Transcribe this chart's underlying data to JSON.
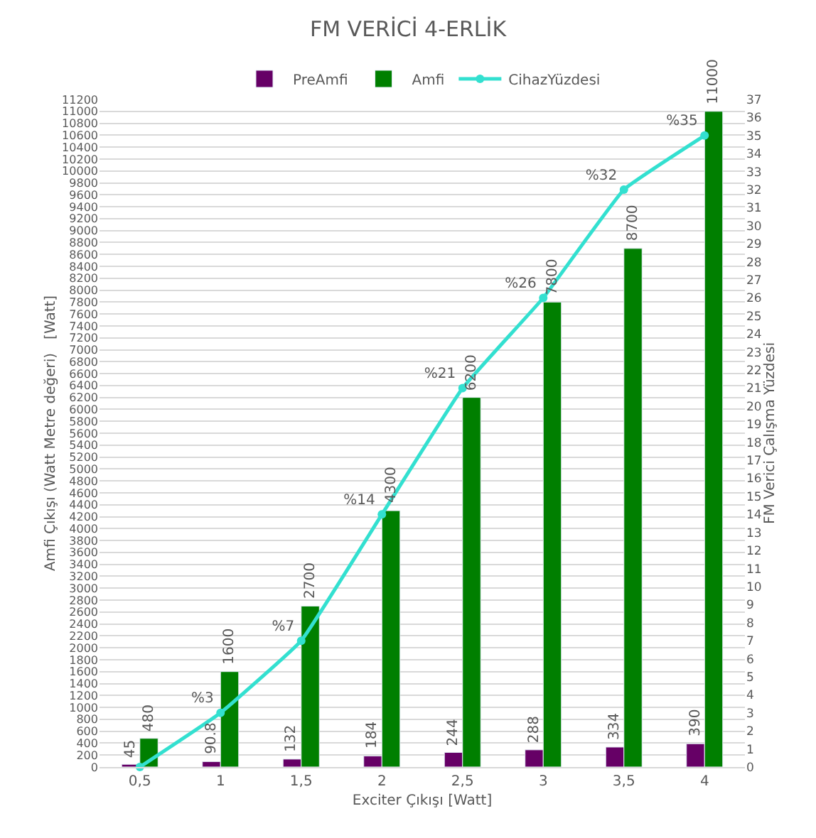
{
  "chart_data": {
    "type": "bar",
    "title": "FM VERİCİ 4-ERLİK",
    "xlabel": "Exciter Çıkışı [Watt]",
    "ylabel": "Amfi Çıkışı (Watt Metre değeri)   [Watt]",
    "y2label": "FM Verici Çalışma Yüzdesi",
    "categories": [
      "0,5",
      "1",
      "1,5",
      "2",
      "2,5",
      "3",
      "3,5",
      "4"
    ],
    "series": [
      {
        "name": "PreAmfi",
        "color": "#660066",
        "values": [
          45,
          90.8,
          132,
          184,
          244,
          288,
          334,
          390
        ]
      },
      {
        "name": "Amfi",
        "color": "#007f00",
        "values": [
          480,
          1600,
          2700,
          4300,
          6200,
          7800,
          8700,
          11000
        ]
      },
      {
        "name": "CihazYüzdesi",
        "type": "line",
        "axis": "y2",
        "color": "#33e0d0",
        "marker": "circle",
        "values": [
          0,
          3,
          7,
          14,
          21,
          26,
          32,
          35
        ],
        "value_labels": [
          null,
          "%3",
          "%7",
          "%14",
          "%21",
          "%26",
          "%32",
          "%35"
        ]
      }
    ],
    "data_labels": true,
    "ylim": [
      0,
      11200
    ],
    "yticks": [
      0,
      200,
      400,
      600,
      800,
      1000,
      1200,
      1400,
      1600,
      1800,
      2000,
      2200,
      2400,
      2600,
      2800,
      3000,
      3200,
      3400,
      3600,
      3800,
      4000,
      4200,
      4400,
      4600,
      4800,
      5000,
      5200,
      5400,
      5600,
      5800,
      6000,
      6200,
      6400,
      6600,
      6800,
      7000,
      7200,
      7400,
      7600,
      7800,
      8000,
      8200,
      8400,
      8600,
      8800,
      9000,
      9200,
      9400,
      9600,
      9800,
      10000,
      10200,
      10400,
      10600,
      10800,
      11000,
      11200
    ],
    "y2lim": [
      0,
      37
    ],
    "y2ticks": [
      0,
      1,
      2,
      3,
      4,
      5,
      6,
      7,
      8,
      9,
      10,
      11,
      12,
      13,
      14,
      15,
      16,
      17,
      18,
      19,
      20,
      21,
      22,
      23,
      24,
      25,
      26,
      27,
      28,
      29,
      30,
      31,
      32,
      33,
      34,
      35,
      36,
      37
    ],
    "grid": "y",
    "legend": "top"
  }
}
